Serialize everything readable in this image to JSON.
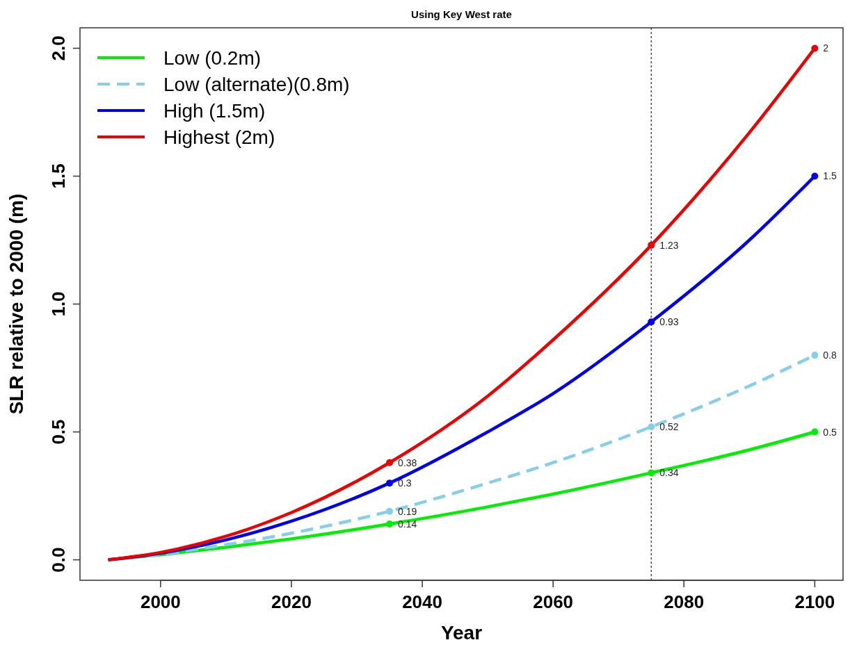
{
  "chart_data": {
    "type": "line",
    "title": "Using Key West rate",
    "xlabel": "Year",
    "ylabel": "SLR relative to 2000 (m)",
    "xlim": [
      1987.68,
      2104.32
    ],
    "xticks": [
      2000,
      2020,
      2040,
      2060,
      2080,
      2100
    ],
    "ylim": [
      -0.08,
      2.08
    ],
    "yticks": [
      {
        "value": 0,
        "label": "0.0"
      },
      {
        "value": 0.5,
        "label": "0.5"
      },
      {
        "value": 1,
        "label": "1.0"
      },
      {
        "value": 1.5,
        "label": "1.5"
      },
      {
        "value": 2,
        "label": "2.0"
      }
    ],
    "grid": false,
    "legend": "top left",
    "ref_lines": [
      {
        "axis": "x",
        "value": 2075,
        "label": null,
        "color": "#333333",
        "line_style": "dotted"
      }
    ],
    "series": [
      {
        "name": "Low (0.2m)",
        "color": "#00ee00",
        "line_style": "solid",
        "x": [
          1992,
          2000,
          2010,
          2020,
          2035,
          2050,
          2060,
          2075,
          2090,
          2100
        ],
        "values": [
          0,
          0.02,
          0.049,
          0.082,
          0.14,
          0.207,
          0.257,
          0.34,
          0.43,
          0.5
        ]
      },
      {
        "name": "Low (alternate)(0.8m)",
        "color": "#87ceeb",
        "line_style": "dashed",
        "x": [
          1992,
          2000,
          2010,
          2020,
          2035,
          2050,
          2060,
          2075,
          2090,
          2100
        ],
        "values": [
          0,
          0.022,
          0.059,
          0.104,
          0.19,
          0.3,
          0.38,
          0.52,
          0.68,
          0.8
        ]
      },
      {
        "name": "High (1.5m)",
        "color": "#0000ee",
        "line_style": "solid",
        "x": [
          1992,
          2000,
          2010,
          2020,
          2035,
          2050,
          2060,
          2075,
          2090,
          2100
        ],
        "values": [
          0,
          0.026,
          0.078,
          0.151,
          0.3,
          0.5,
          0.65,
          0.93,
          1.25,
          1.5
        ]
      },
      {
        "name": "Highest (2m)",
        "color": "#ee0000",
        "line_style": "solid",
        "x": [
          1992,
          2000,
          2010,
          2020,
          2035,
          2050,
          2060,
          2075,
          2090,
          2100
        ],
        "values": [
          0,
          0.029,
          0.092,
          0.185,
          0.38,
          0.64,
          0.86,
          1.23,
          1.67,
          2
        ]
      },
      {
        "type": "scatter",
        "marker": "circle",
        "color": "#00ee00",
        "x": [
          2035,
          2075,
          2100
        ],
        "values": [
          0.14,
          0.34,
          0.5
        ],
        "value_labels": [
          "0.14",
          "0.34",
          "0.5"
        ]
      },
      {
        "type": "scatter",
        "marker": "circle",
        "color": "#87ceeb",
        "x": [
          2035,
          2075,
          2100
        ],
        "values": [
          0.19,
          0.52,
          0.8
        ],
        "value_labels": [
          "0.19",
          "0.52",
          "0.8"
        ]
      },
      {
        "type": "scatter",
        "marker": "circle",
        "color": "#0000ee",
        "x": [
          2035,
          2075,
          2100
        ],
        "values": [
          0.3,
          0.93,
          1.5
        ],
        "value_labels": [
          "0.3",
          "0.93",
          "1.5"
        ]
      },
      {
        "type": "scatter",
        "marker": "circle",
        "color": "#ee0000",
        "x": [
          2035,
          2075,
          2100
        ],
        "values": [
          0.38,
          1.23,
          2
        ],
        "value_labels": [
          "0.38",
          "1.23",
          "2"
        ]
      }
    ]
  }
}
